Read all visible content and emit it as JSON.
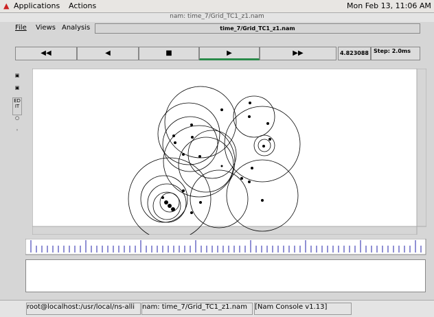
{
  "top_panel": {
    "menus": [
      "Applications",
      "Actions"
    ],
    "clock": "Mon Feb 13, 11:06 AM"
  },
  "window": {
    "title": "nam: time_7/Grid_TC1_z1.nam"
  },
  "menu_bar": {
    "items": [
      "File",
      "Views",
      "Analysis"
    ],
    "file_field": "time_7/Grid_TC1_z1.nam"
  },
  "controls": {
    "time": "4.823088",
    "step": "Step: 2.0ms"
  },
  "toolbar": {
    "edit": "ED IT"
  },
  "taskbar": {
    "items": [
      "root@localhost:/usr/local/ns-alli",
      "nam: time_7/Grid_TC1_z1.nam",
      "[Nam Console v1.13]"
    ]
  }
}
